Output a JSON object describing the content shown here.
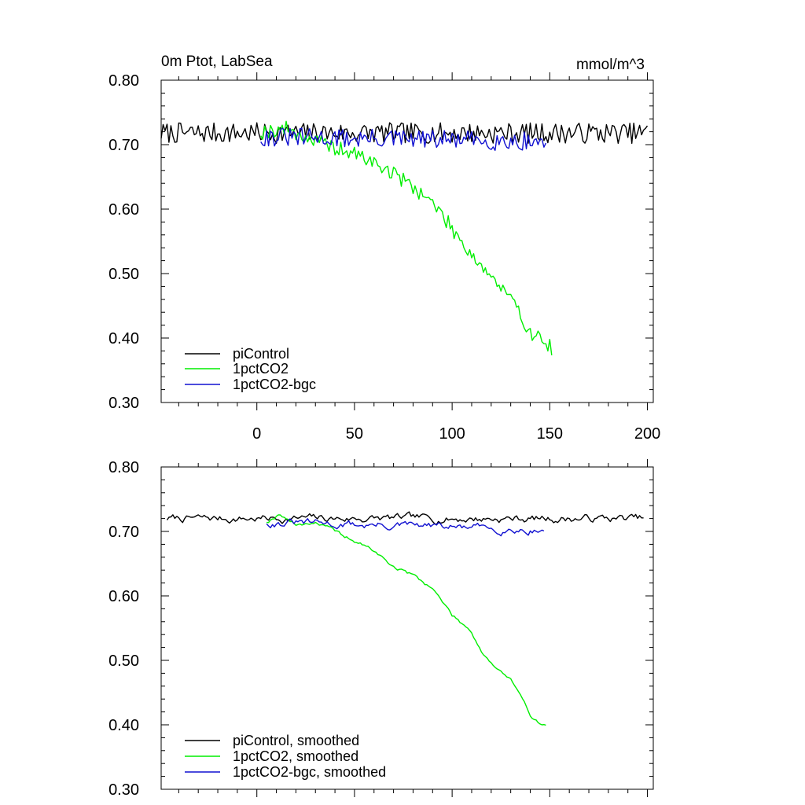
{
  "colors": {
    "piControl": "#000000",
    "1pctCO2": "#00ee00",
    "1pctCO2-bgc": "#1010d0"
  },
  "chart_data": [
    {
      "type": "line",
      "title": "0m Ptot, LabSea",
      "units": "mmol/m^3",
      "xlim": [
        -49,
        203
      ],
      "ylim": [
        0.3,
        0.8
      ],
      "yticks": [
        "0.30",
        "0.40",
        "0.50",
        "0.60",
        "0.70",
        "0.80"
      ],
      "xticks": [
        "0",
        "50",
        "100",
        "150",
        "200"
      ],
      "legend": [
        "piControl",
        "1pctCO2",
        "1pctCO2-bgc"
      ],
      "series": [
        {
          "name": "piControl",
          "color": "#000000",
          "x_start": -49,
          "x_end": 200,
          "mean": 0.718,
          "noise": 0.016,
          "trend": 0,
          "smooth": false,
          "seed": 7
        },
        {
          "name": "1pctCO2",
          "color": "#00ee00",
          "x_start": 2,
          "x_end": 151,
          "noise": 0.012,
          "smooth": false,
          "seed": 19,
          "anchors": [
            [
              2,
              0.72
            ],
            [
              15,
              0.725
            ],
            [
              30,
              0.705
            ],
            [
              40,
              0.695
            ],
            [
              55,
              0.68
            ],
            [
              70,
              0.655
            ],
            [
              80,
              0.635
            ],
            [
              90,
              0.61
            ],
            [
              100,
              0.57
            ],
            [
              110,
              0.53
            ],
            [
              120,
              0.495
            ],
            [
              130,
              0.46
            ],
            [
              140,
              0.41
            ],
            [
              151,
              0.385
            ]
          ]
        },
        {
          "name": "1pctCO2-bgc",
          "color": "#1010d0",
          "x_start": 2,
          "x_end": 148,
          "mean": 0.712,
          "noise": 0.015,
          "trend": -5e-05,
          "smooth": false,
          "seed": 31
        }
      ]
    },
    {
      "type": "line",
      "title": "",
      "units": "",
      "xlim": [
        -49,
        203
      ],
      "ylim": [
        0.3,
        0.8
      ],
      "yticks": [
        "0.30",
        "0.40",
        "0.50",
        "0.60",
        "0.70",
        "0.80"
      ],
      "xticks": [],
      "legend": [
        "piControl, smoothed",
        "1pctCO2, smoothed",
        "1pctCO2-bgc, smoothed"
      ],
      "series": [
        {
          "name": "piControl, smoothed",
          "color": "#000000",
          "x_start": -46,
          "x_end": 198,
          "mean": 0.72,
          "noise": 0.006,
          "trend": 0,
          "smooth": true,
          "seed": 7
        },
        {
          "name": "1pctCO2, smoothed",
          "color": "#00ee00",
          "x_start": 5,
          "x_end": 148,
          "noise": 0.003,
          "smooth": true,
          "seed": 19,
          "anchors": [
            [
              5,
              0.715
            ],
            [
              12,
              0.728
            ],
            [
              20,
              0.71
            ],
            [
              30,
              0.715
            ],
            [
              40,
              0.7
            ],
            [
              50,
              0.685
            ],
            [
              60,
              0.67
            ],
            [
              70,
              0.645
            ],
            [
              80,
              0.632
            ],
            [
              90,
              0.612
            ],
            [
              100,
              0.57
            ],
            [
              110,
              0.545
            ],
            [
              115,
              0.515
            ],
            [
              122,
              0.49
            ],
            [
              130,
              0.47
            ],
            [
              140,
              0.415
            ],
            [
              148,
              0.398
            ]
          ]
        },
        {
          "name": "1pctCO2-bgc, smoothed",
          "color": "#1010d0",
          "x_start": 5,
          "x_end": 147,
          "mean": 0.714,
          "noise": 0.006,
          "trend": -8e-05,
          "smooth": true,
          "seed": 31
        }
      ]
    }
  ]
}
